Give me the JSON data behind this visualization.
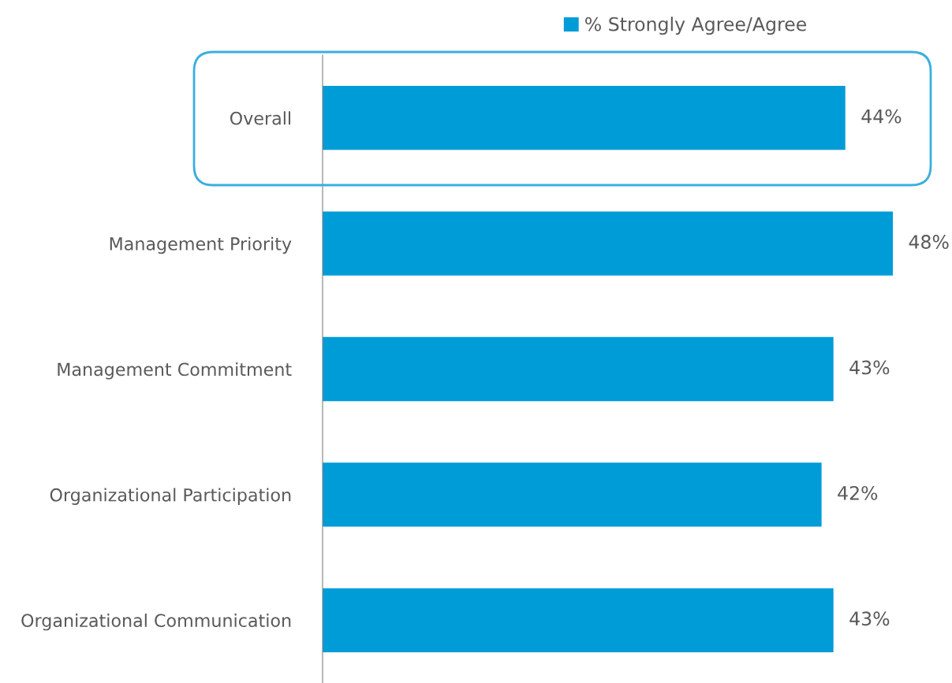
{
  "chart_data": {
    "type": "bar",
    "orientation": "horizontal",
    "categories": [
      "Overall",
      "Management Priority",
      "Management Commitment",
      "Organizational Participation",
      "Organizational Communication"
    ],
    "series": [
      {
        "name": "% Strongly Agree/Agree",
        "color": "#009cd8",
        "values": [
          44,
          48,
          43,
          42,
          43
        ],
        "value_labels": [
          "44%",
          "48%",
          "43%",
          "42%",
          "43%"
        ]
      }
    ],
    "legend": "top",
    "grid": false
  }
}
